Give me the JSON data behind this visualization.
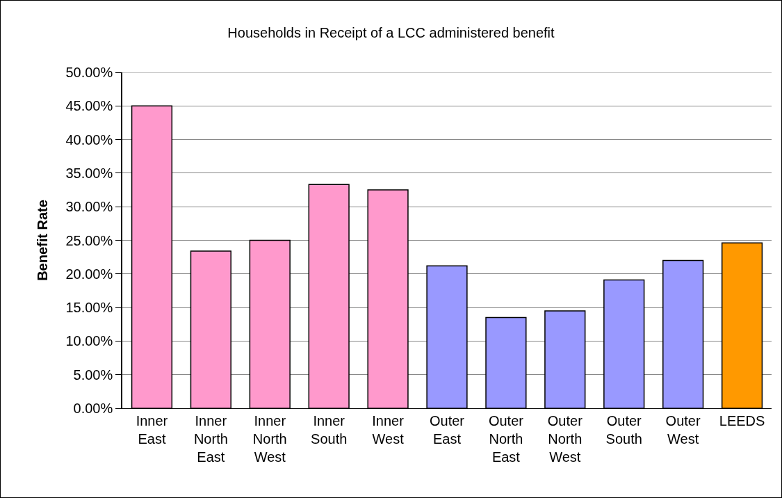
{
  "chart_data": {
    "type": "bar",
    "title": "Households in Receipt of a LCC administered benefit",
    "ylabel": "Benefit Rate",
    "categories": [
      "Inner East",
      "Inner North East",
      "Inner North West",
      "Inner South",
      "Inner West",
      "Outer East",
      "Outer North East",
      "Outer North West",
      "Outer South",
      "Outer West",
      "LEEDS"
    ],
    "values": [
      45.0,
      23.4,
      25.0,
      33.3,
      32.5,
      21.2,
      13.5,
      14.5,
      19.1,
      22.0,
      24.6
    ],
    "colors": [
      "#ff99cc",
      "#ff99cc",
      "#ff99cc",
      "#ff99cc",
      "#ff99cc",
      "#9999ff",
      "#9999ff",
      "#9999ff",
      "#9999ff",
      "#9999ff",
      "#ff9900"
    ],
    "ylim": [
      0,
      50
    ],
    "yticks": [
      {
        "value": 0,
        "label": "0.00%"
      },
      {
        "value": 5,
        "label": "5.00%"
      },
      {
        "value": 10,
        "label": "10.00%"
      },
      {
        "value": 15,
        "label": "15.00%"
      },
      {
        "value": 20,
        "label": "20.00%"
      },
      {
        "value": 25,
        "label": "25.00%"
      },
      {
        "value": 30,
        "label": "30.00%"
      },
      {
        "value": 35,
        "label": "35.00%"
      },
      {
        "value": 40,
        "label": "40.00%"
      },
      {
        "value": 45,
        "label": "45.00%"
      },
      {
        "value": 50,
        "label": "50.00%"
      }
    ],
    "grid": "y"
  }
}
